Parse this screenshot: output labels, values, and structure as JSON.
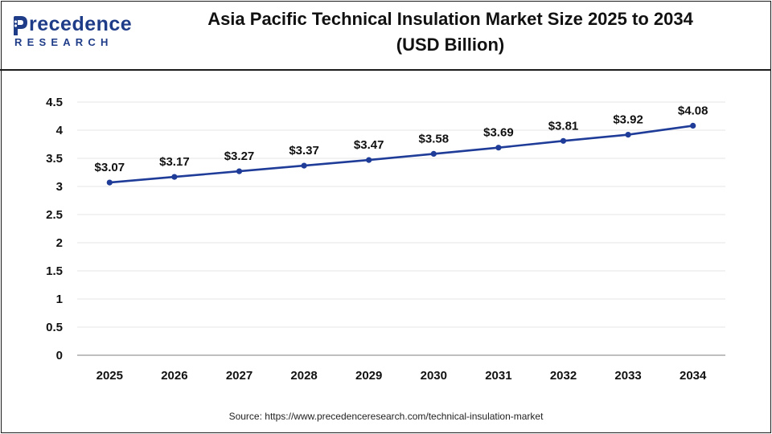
{
  "header": {
    "logo_top": "recedence",
    "logo_bottom": "RESEARCH",
    "title_line1": "Asia Pacific Technical Insulation Market Size 2025 to 2034",
    "title_line2": "(USD Billion)"
  },
  "colors": {
    "line": "#1f3c99",
    "brand": "#1f3c88",
    "grid": "#e6e6e6",
    "axis": "#999999",
    "text": "#111111"
  },
  "chart_data": {
    "type": "line",
    "title": "Asia Pacific Technical Insulation Market Size 2025 to 2034 (USD Billion)",
    "categories": [
      "2025",
      "2026",
      "2027",
      "2028",
      "2029",
      "2030",
      "2031",
      "2032",
      "2033",
      "2034"
    ],
    "series": [
      {
        "values": [
          3.07,
          3.17,
          3.27,
          3.37,
          3.47,
          3.58,
          3.69,
          3.81,
          3.92,
          4.08
        ],
        "labels": [
          "$3.07",
          "$3.17",
          "$3.27",
          "$3.37",
          "$3.47",
          "$3.58",
          "$3.69",
          "$3.81",
          "$3.92",
          "$4.08"
        ]
      }
    ],
    "ylim": [
      0,
      4.5
    ],
    "yticks": [
      "0",
      "0.5",
      "1",
      "1.5",
      "2",
      "2.5",
      "3",
      "3.5",
      "4",
      "4.5"
    ],
    "xlabel": "",
    "ylabel": "",
    "grid": true,
    "legend": "none"
  },
  "source": "Source: https://www.precedenceresearch.com/technical-insulation-market"
}
